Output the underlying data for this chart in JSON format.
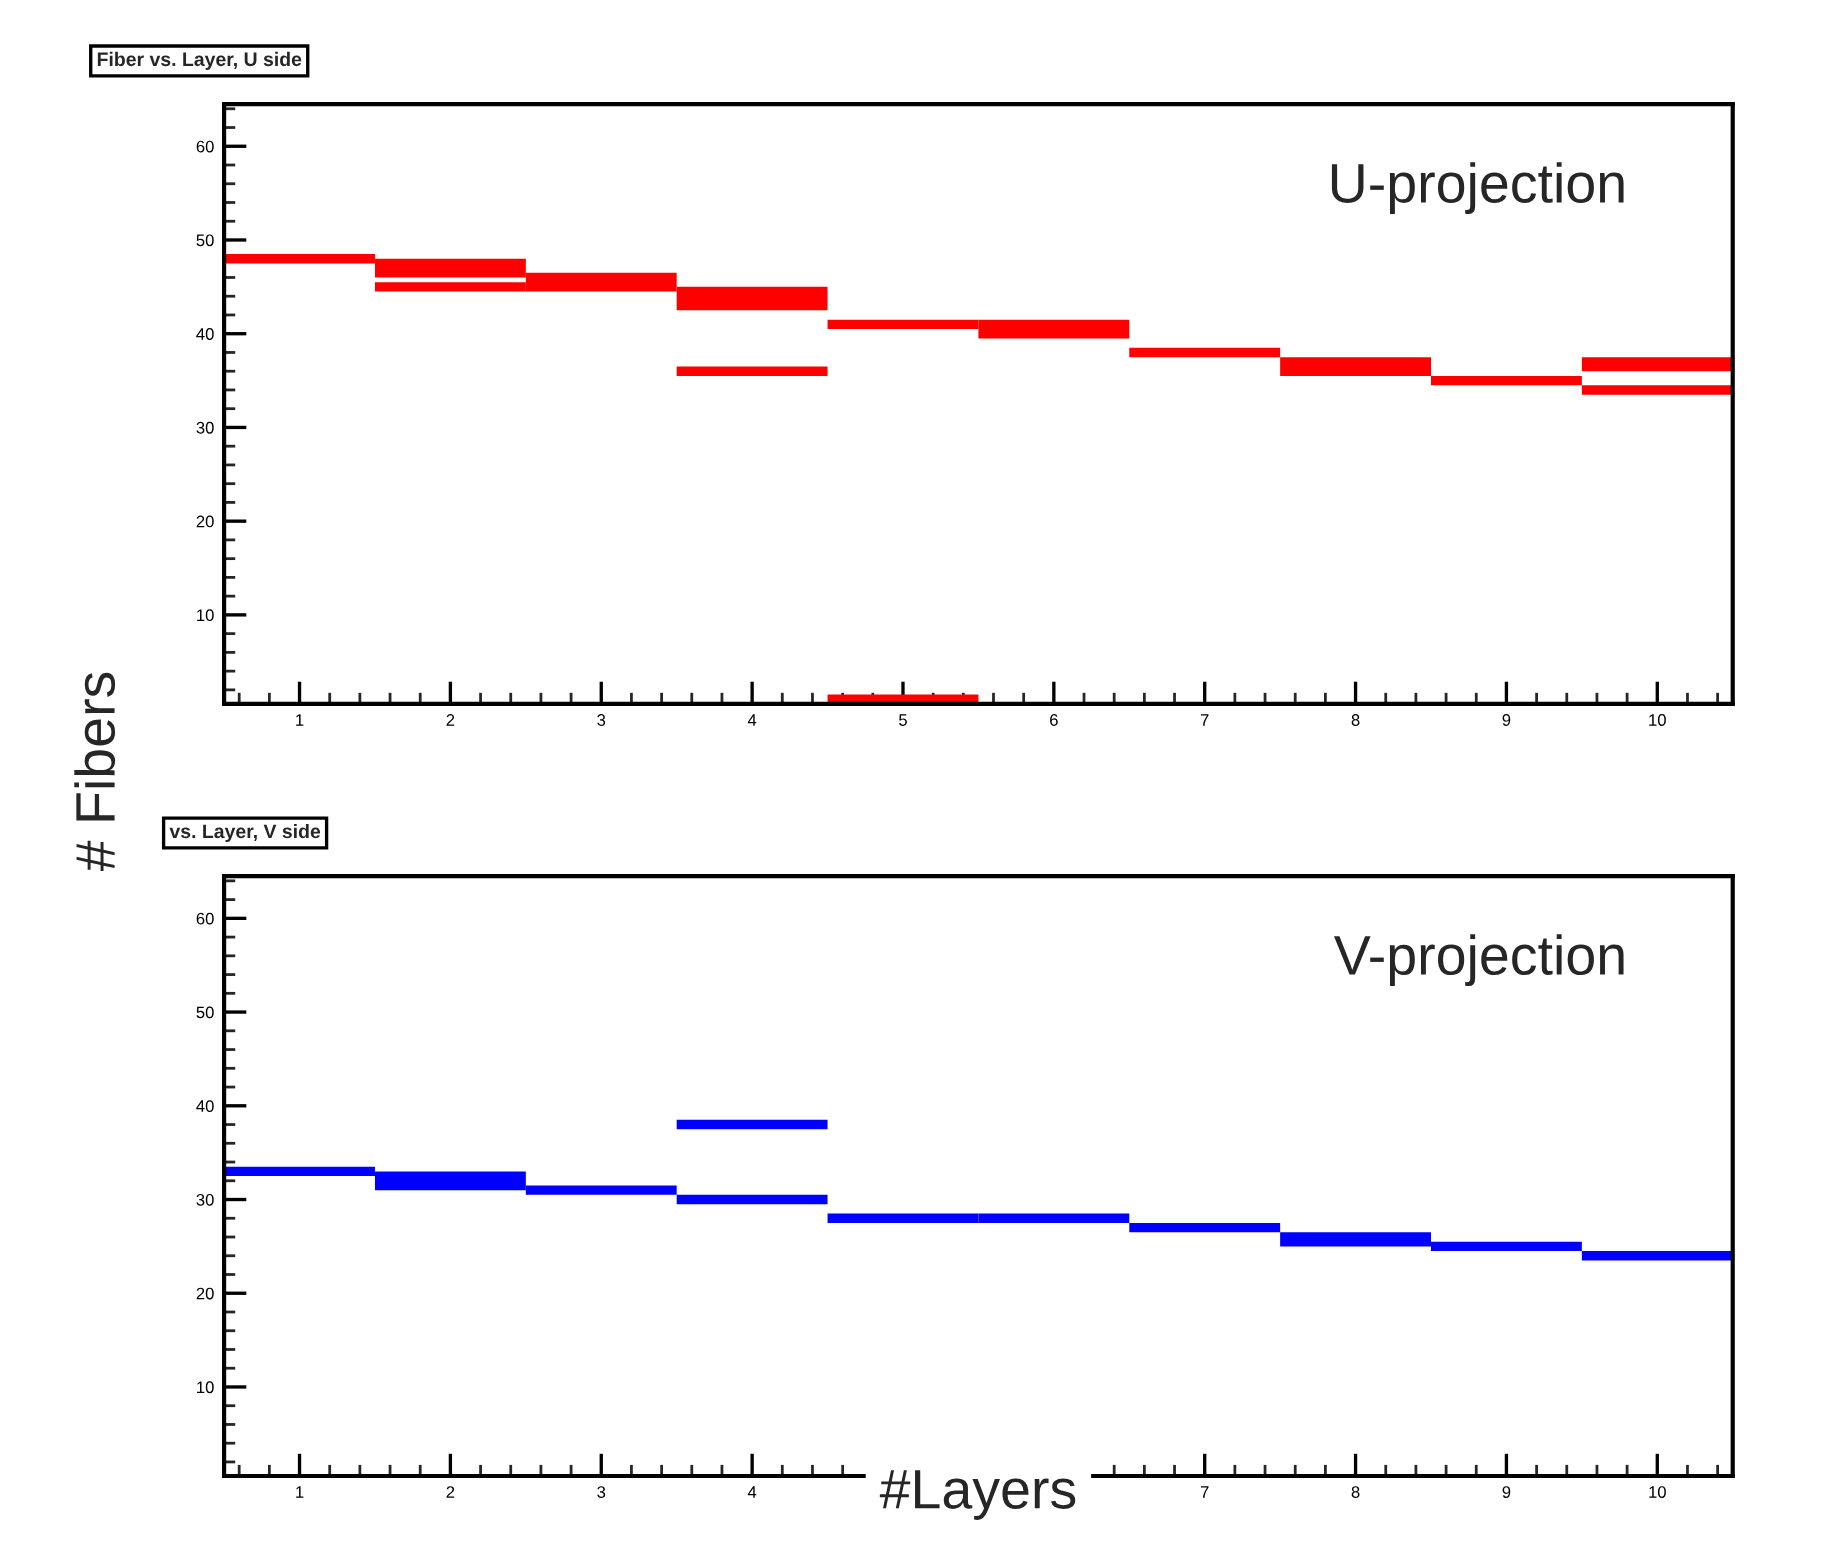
{
  "chart_data": [
    {
      "type": "bar",
      "title": "Fiber vs. Layer, U side",
      "ylabel": "# Fibers",
      "annotations": [
        "U-projection"
      ],
      "x": [
        1,
        2,
        3,
        4,
        5,
        6,
        7,
        8,
        9,
        10
      ],
      "xlim": [
        0.5,
        10.5
      ],
      "xticks": [
        1,
        2,
        3,
        4,
        5,
        6,
        7,
        8,
        9,
        10
      ],
      "ylim": [
        0.5,
        64.5
      ],
      "yticks": [
        10,
        20,
        30,
        40,
        50,
        60
      ],
      "grid": false,
      "legend": false,
      "series": [
        {
          "color": "#ff0000",
          "base": [
            47.5,
            46,
            44.5,
            42.5,
            40.5,
            39.5,
            37.5,
            35.5,
            34.5,
            36
          ],
          "values": [
            1,
            2,
            2,
            2.5,
            1,
            2,
            1,
            2,
            1,
            1.5
          ]
        },
        {
          "color": "#ff0000",
          "base": [
            null,
            44.5,
            null,
            35.5,
            0.5,
            null,
            null,
            null,
            null,
            33.5
          ],
          "values": [
            null,
            1,
            null,
            1,
            1,
            null,
            null,
            null,
            null,
            1
          ]
        }
      ]
    },
    {
      "type": "bar",
      "title": "vs. Layer, V side",
      "xlabel": "#Layers",
      "annotations": [
        "V-projection"
      ],
      "x": [
        1,
        2,
        3,
        4,
        5,
        6,
        7,
        8,
        9,
        10
      ],
      "xlim": [
        0.5,
        10.5
      ],
      "xticks": [
        1,
        2,
        3,
        4,
        7,
        8,
        9,
        10
      ],
      "ylim": [
        0.5,
        64.5
      ],
      "yticks": [
        10,
        20,
        30,
        40,
        50,
        60
      ],
      "grid": false,
      "legend": false,
      "series": [
        {
          "color": "#0000ff",
          "base": [
            32.5,
            31,
            30.5,
            29.5,
            27.5,
            27.5,
            26.5,
            25,
            24.5,
            23.5
          ],
          "values": [
            1,
            2,
            1,
            1,
            1,
            1,
            1,
            1.5,
            1,
            1
          ]
        },
        {
          "color": "#0000ff",
          "base": [
            null,
            null,
            null,
            37.5,
            null,
            null,
            null,
            null,
            null,
            null
          ],
          "values": [
            null,
            null,
            null,
            1,
            null,
            null,
            null,
            null,
            null,
            null
          ]
        }
      ]
    }
  ]
}
